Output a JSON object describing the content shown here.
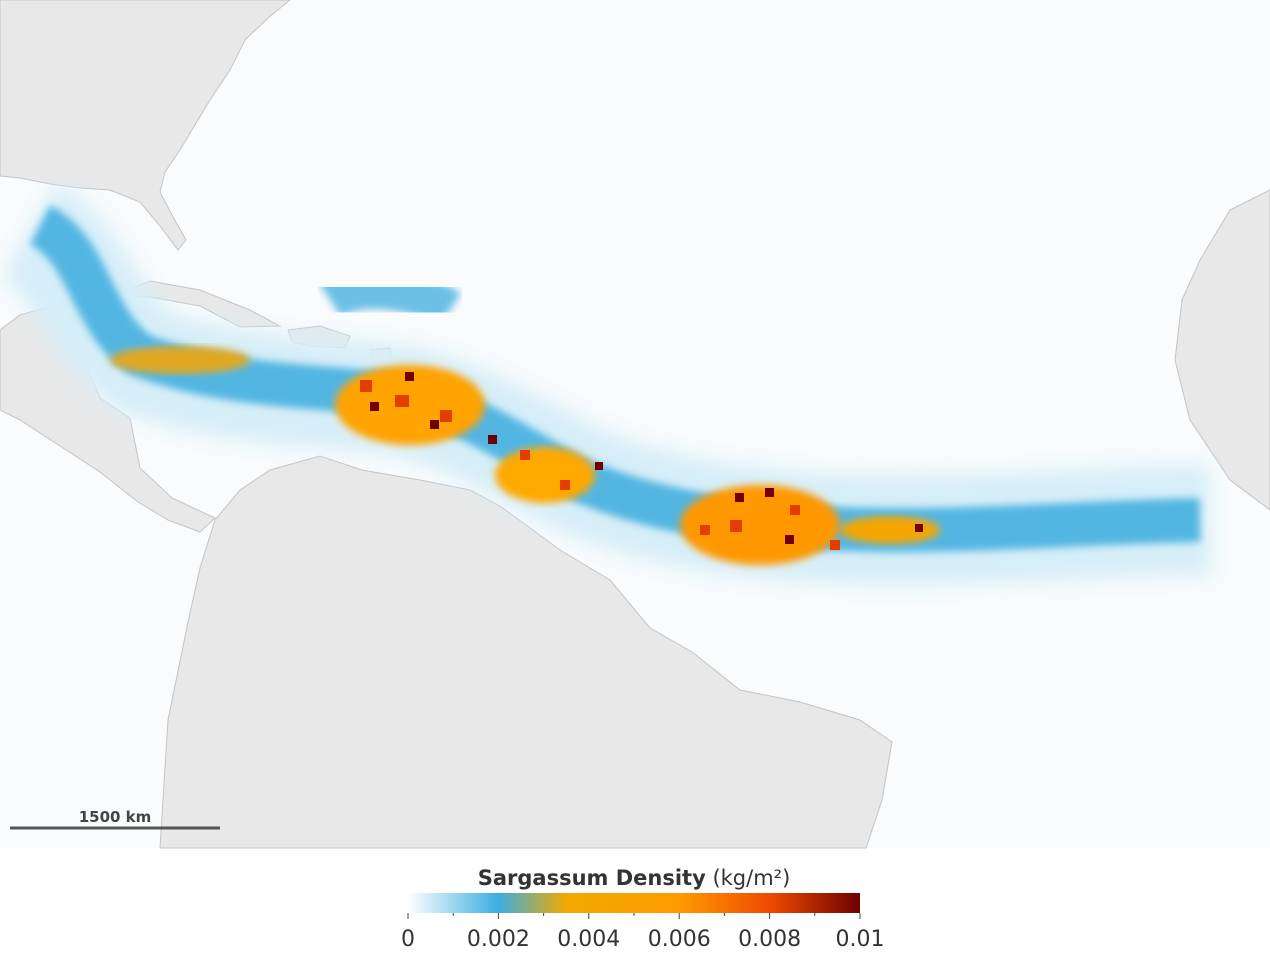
{
  "map": {
    "scale_bar_label": "1500 km"
  },
  "colorbar": {
    "title": "Sargassum Density",
    "unit": "(kg/m²)",
    "range": [
      0,
      0.01
    ],
    "ticks": [
      0,
      0.002,
      0.004,
      0.006,
      0.008,
      0.01
    ],
    "minor_ticks": [
      0.001,
      0.003,
      0.005,
      0.007,
      0.009
    ],
    "stops": [
      {
        "value": 0,
        "color": "#ffffff"
      },
      {
        "value": 0.002,
        "color": "#3aaee0"
      },
      {
        "value": 0.0035,
        "color": "#f2a900"
      },
      {
        "value": 0.006,
        "color": "#ff9a00"
      },
      {
        "value": 0.008,
        "color": "#f04a00"
      },
      {
        "value": 0.01,
        "color": "#6e0000"
      }
    ]
  }
}
